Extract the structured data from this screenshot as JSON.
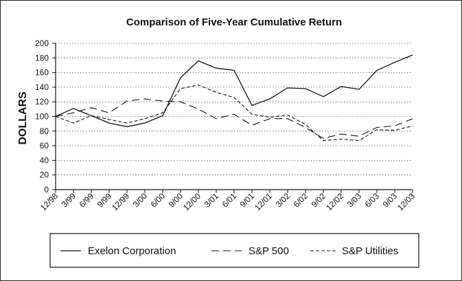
{
  "chart_data": {
    "type": "line",
    "title": "Comparison of Five-Year Cumulative Return",
    "xlabel": "",
    "ylabel": "DOLLARS",
    "ylim": [
      0,
      200
    ],
    "yticks": [
      0,
      20,
      40,
      60,
      80,
      100,
      120,
      140,
      160,
      180,
      200
    ],
    "grid": true,
    "legend_position": "bottom",
    "categories": [
      "12/98",
      "3/99",
      "6/99",
      "9/99",
      "12/99",
      "3/00",
      "6/00",
      "9/00",
      "12/00",
      "3/01",
      "6/01",
      "9/01",
      "12/01",
      "3/02",
      "6/02",
      "9/02",
      "12/02",
      "3/03",
      "6/03",
      "9/03",
      "12/03"
    ],
    "series": [
      {
        "name": "Exelon Corporation",
        "style": "solid",
        "values": [
          100,
          111,
          101,
          91,
          86,
          91,
          101,
          153,
          176,
          166,
          163,
          115,
          124,
          139,
          138,
          127,
          141,
          137,
          163,
          174,
          184
        ]
      },
      {
        "name": "S&P 500",
        "style": "long-dash",
        "values": [
          100,
          105,
          112,
          105,
          121,
          124,
          121,
          120,
          110,
          97,
          103,
          88,
          97,
          97,
          85,
          70,
          76,
          73,
          85,
          87,
          97
        ]
      },
      {
        "name": "S&P Utilities",
        "style": "short-dash",
        "values": [
          100,
          91,
          101,
          96,
          91,
          97,
          105,
          138,
          143,
          133,
          126,
          103,
          99,
          102,
          89,
          67,
          69,
          67,
          82,
          81,
          87
        ]
      }
    ]
  }
}
